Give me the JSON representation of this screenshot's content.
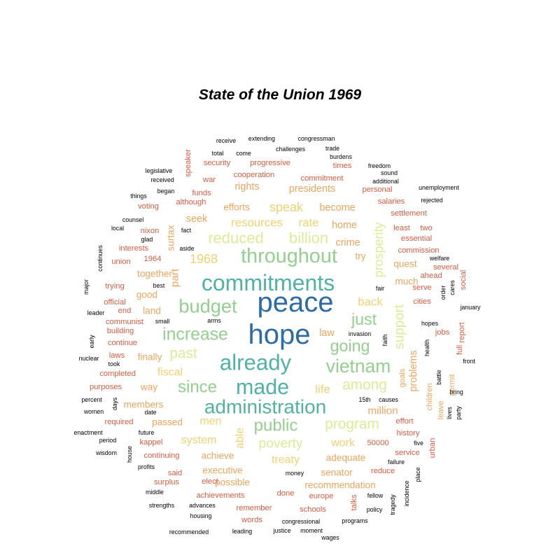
{
  "chart_data": {
    "type": "wordcloud",
    "title": "State of the Union 1969",
    "palette": [
      "#2b6ba7",
      "#4fb3a3",
      "#92d08e",
      "#dcec95",
      "#f5d070",
      "#f3a35b",
      "#e1593e"
    ],
    "words": [
      {
        "text": "peace",
        "size": 1.0,
        "tier": 0
      },
      {
        "text": "hope",
        "size": 1.0,
        "tier": 0
      },
      {
        "text": "commitments",
        "size": 0.8,
        "tier": 1
      },
      {
        "text": "already",
        "size": 0.78,
        "tier": 1
      },
      {
        "text": "made",
        "size": 0.76,
        "tier": 1
      },
      {
        "text": "administration",
        "size": 0.7,
        "tier": 1
      },
      {
        "text": "throughout",
        "size": 0.72,
        "tier": 2
      },
      {
        "text": "budget",
        "size": 0.68,
        "tier": 2
      },
      {
        "text": "vietnam",
        "size": 0.66,
        "tier": 2
      },
      {
        "text": "increase",
        "size": 0.62,
        "tier": 2
      },
      {
        "text": "since",
        "size": 0.6,
        "tier": 2
      },
      {
        "text": "going",
        "size": 0.58,
        "tier": 2
      },
      {
        "text": "just",
        "size": 0.58,
        "tier": 2
      },
      {
        "text": "public",
        "size": 0.6,
        "tier": 2
      },
      {
        "text": "reduced",
        "size": 0.55,
        "tier": 3
      },
      {
        "text": "billion",
        "size": 0.55,
        "tier": 3
      },
      {
        "text": "past",
        "size": 0.52,
        "tier": 3
      },
      {
        "text": "among",
        "size": 0.52,
        "tier": 3
      },
      {
        "text": "program",
        "size": 0.52,
        "tier": 3
      },
      {
        "text": "poverty",
        "size": 0.48,
        "tier": 3
      },
      {
        "text": "support",
        "size": 0.48,
        "tier": 3
      },
      {
        "text": "prosperity",
        "size": 0.45,
        "tier": 3
      },
      {
        "text": "speak",
        "size": 0.45,
        "tier": 4
      },
      {
        "text": "resources",
        "size": 0.42,
        "tier": 4
      },
      {
        "text": "rate",
        "size": 0.42,
        "tier": 4
      },
      {
        "text": "1968",
        "size": 0.45,
        "tier": 4
      },
      {
        "text": "back",
        "size": 0.42,
        "tier": 4
      },
      {
        "text": "life",
        "size": 0.42,
        "tier": 4
      },
      {
        "text": "fiscal",
        "size": 0.4,
        "tier": 4
      },
      {
        "text": "men",
        "size": 0.4,
        "tier": 4
      },
      {
        "text": "system",
        "size": 0.4,
        "tier": 4
      },
      {
        "text": "able",
        "size": 0.4,
        "tier": 4
      },
      {
        "text": "treaty",
        "size": 0.4,
        "tier": 4
      },
      {
        "text": "work",
        "size": 0.4,
        "tier": 4
      },
      {
        "text": "part",
        "size": 0.38,
        "tier": 5
      },
      {
        "text": "surtax",
        "size": 0.34,
        "tier": 5
      },
      {
        "text": "law",
        "size": 0.36,
        "tier": 5
      },
      {
        "text": "million",
        "size": 0.38,
        "tier": 5
      },
      {
        "text": "problems",
        "size": 0.36,
        "tier": 5
      },
      {
        "text": "home",
        "size": 0.36,
        "tier": 5
      },
      {
        "text": "crime",
        "size": 0.36,
        "tier": 5
      },
      {
        "text": "try",
        "size": 0.34,
        "tier": 5
      },
      {
        "text": "become",
        "size": 0.36,
        "tier": 5
      },
      {
        "text": "presidents",
        "size": 0.36,
        "tier": 5
      },
      {
        "text": "rights",
        "size": 0.36,
        "tier": 5
      },
      {
        "text": "seek",
        "size": 0.36,
        "tier": 5
      },
      {
        "text": "efforts",
        "size": 0.34,
        "tier": 5
      },
      {
        "text": "together",
        "size": 0.34,
        "tier": 5
      },
      {
        "text": "good",
        "size": 0.34,
        "tier": 5
      },
      {
        "text": "land",
        "size": 0.34,
        "tier": 5
      },
      {
        "text": "finally",
        "size": 0.34,
        "tier": 5
      },
      {
        "text": "way",
        "size": 0.34,
        "tier": 5
      },
      {
        "text": "members",
        "size": 0.34,
        "tier": 5
      },
      {
        "text": "passed",
        "size": 0.34,
        "tier": 5
      },
      {
        "text": "achieve",
        "size": 0.34,
        "tier": 5
      },
      {
        "text": "executive",
        "size": 0.34,
        "tier": 5
      },
      {
        "text": "possible",
        "size": 0.34,
        "tier": 5
      },
      {
        "text": "adequate",
        "size": 0.34,
        "tier": 5
      },
      {
        "text": "senator",
        "size": 0.34,
        "tier": 5
      },
      {
        "text": "recommendation",
        "size": 0.34,
        "tier": 5
      },
      {
        "text": "much",
        "size": 0.34,
        "tier": 5
      },
      {
        "text": "quest",
        "size": 0.34,
        "tier": 5
      },
      {
        "text": "goals",
        "size": 0.28,
        "tier": 5
      },
      {
        "text": "children",
        "size": 0.28,
        "tier": 5
      },
      {
        "text": "leave",
        "size": 0.28,
        "tier": 5
      },
      {
        "text": "permit",
        "size": 0.28,
        "tier": 5
      },
      {
        "text": "speaker",
        "size": 0.28,
        "tier": 6
      },
      {
        "text": "security",
        "size": 0.28,
        "tier": 6
      },
      {
        "text": "progressive",
        "size": 0.28,
        "tier": 6
      },
      {
        "text": "times",
        "size": 0.28,
        "tier": 6
      },
      {
        "text": "cooperation",
        "size": 0.28,
        "tier": 6
      },
      {
        "text": "war",
        "size": 0.28,
        "tier": 6
      },
      {
        "text": "commitment",
        "size": 0.28,
        "tier": 6
      },
      {
        "text": "funds",
        "size": 0.28,
        "tier": 6
      },
      {
        "text": "although",
        "size": 0.28,
        "tier": 6
      },
      {
        "text": "personal",
        "size": 0.28,
        "tier": 6
      },
      {
        "text": "salaries",
        "size": 0.28,
        "tier": 6
      },
      {
        "text": "settlement",
        "size": 0.28,
        "tier": 6
      },
      {
        "text": "least",
        "size": 0.28,
        "tier": 6
      },
      {
        "text": "two",
        "size": 0.28,
        "tier": 6
      },
      {
        "text": "essential",
        "size": 0.28,
        "tier": 6
      },
      {
        "text": "commission",
        "size": 0.28,
        "tier": 6
      },
      {
        "text": "ahead",
        "size": 0.28,
        "tier": 6
      },
      {
        "text": "several",
        "size": 0.28,
        "tier": 6
      },
      {
        "text": "serve",
        "size": 0.28,
        "tier": 6
      },
      {
        "text": "cities",
        "size": 0.28,
        "tier": 6
      },
      {
        "text": "jobs",
        "size": 0.28,
        "tier": 6
      },
      {
        "text": "voting",
        "size": 0.28,
        "tier": 6
      },
      {
        "text": "nixon",
        "size": 0.28,
        "tier": 6
      },
      {
        "text": "interests",
        "size": 0.28,
        "tier": 6
      },
      {
        "text": "1964",
        "size": 0.28,
        "tier": 6
      },
      {
        "text": "union",
        "size": 0.28,
        "tier": 6
      },
      {
        "text": "trying",
        "size": 0.28,
        "tier": 6
      },
      {
        "text": "official",
        "size": 0.28,
        "tier": 6
      },
      {
        "text": "end",
        "size": 0.28,
        "tier": 6
      },
      {
        "text": "communist",
        "size": 0.28,
        "tier": 6
      },
      {
        "text": "building",
        "size": 0.28,
        "tier": 6
      },
      {
        "text": "continue",
        "size": 0.28,
        "tier": 6
      },
      {
        "text": "laws",
        "size": 0.28,
        "tier": 6
      },
      {
        "text": "completed",
        "size": 0.28,
        "tier": 6
      },
      {
        "text": "purposes",
        "size": 0.28,
        "tier": 6
      },
      {
        "text": "required",
        "size": 0.28,
        "tier": 6
      },
      {
        "text": "kappel",
        "size": 0.28,
        "tier": 6
      },
      {
        "text": "continuing",
        "size": 0.28,
        "tier": 6
      },
      {
        "text": "said",
        "size": 0.28,
        "tier": 6
      },
      {
        "text": "surplus",
        "size": 0.28,
        "tier": 6
      },
      {
        "text": "elect",
        "size": 0.28,
        "tier": 6
      },
      {
        "text": "achievements",
        "size": 0.28,
        "tier": 6
      },
      {
        "text": "done",
        "size": 0.28,
        "tier": 6
      },
      {
        "text": "europe",
        "size": 0.28,
        "tier": 6
      },
      {
        "text": "remember",
        "size": 0.28,
        "tier": 6
      },
      {
        "text": "schools",
        "size": 0.28,
        "tier": 6
      },
      {
        "text": "words",
        "size": 0.28,
        "tier": 6
      },
      {
        "text": "history",
        "size": 0.28,
        "tier": 6
      },
      {
        "text": "service",
        "size": 0.28,
        "tier": 6
      },
      {
        "text": "reduce",
        "size": 0.28,
        "tier": 6
      },
      {
        "text": "50000",
        "size": 0.28,
        "tier": 6
      },
      {
        "text": "talks",
        "size": 0.28,
        "tier": 6
      },
      {
        "text": "report",
        "size": 0.28,
        "tier": 6
      },
      {
        "text": "social",
        "size": 0.28,
        "tier": 6
      },
      {
        "text": "urban",
        "size": 0.28,
        "tier": 6
      },
      {
        "text": "full",
        "size": 0.28,
        "tier": 6
      },
      {
        "text": "effort",
        "size": 0.28,
        "tier": 6
      },
      {
        "text": "receive",
        "size": 0.22,
        "tier": 7
      },
      {
        "text": "extending",
        "size": 0.22,
        "tier": 7
      },
      {
        "text": "congressman",
        "size": 0.22,
        "tier": 7
      },
      {
        "text": "challenges",
        "size": 0.22,
        "tier": 7
      },
      {
        "text": "trade",
        "size": 0.22,
        "tier": 7
      },
      {
        "text": "burdens",
        "size": 0.22,
        "tier": 7
      },
      {
        "text": "total",
        "size": 0.22,
        "tier": 7
      },
      {
        "text": "come",
        "size": 0.22,
        "tier": 7
      },
      {
        "text": "freedom",
        "size": 0.22,
        "tier": 7
      },
      {
        "text": "sound",
        "size": 0.22,
        "tier": 7
      },
      {
        "text": "additional",
        "size": 0.22,
        "tier": 7
      },
      {
        "text": "legislative",
        "size": 0.22,
        "tier": 7
      },
      {
        "text": "received",
        "size": 0.22,
        "tier": 7
      },
      {
        "text": "things",
        "size": 0.22,
        "tier": 7
      },
      {
        "text": "began",
        "size": 0.22,
        "tier": 7
      },
      {
        "text": "unemployment",
        "size": 0.22,
        "tier": 7
      },
      {
        "text": "rejected",
        "size": 0.22,
        "tier": 7
      },
      {
        "text": "counsel",
        "size": 0.22,
        "tier": 7
      },
      {
        "text": "local",
        "size": 0.22,
        "tier": 7
      },
      {
        "text": "fact",
        "size": 0.22,
        "tier": 7
      },
      {
        "text": "glad",
        "size": 0.22,
        "tier": 7
      },
      {
        "text": "aside",
        "size": 0.22,
        "tier": 7
      },
      {
        "text": "continues",
        "size": 0.22,
        "tier": 7
      },
      {
        "text": "welfare",
        "size": 0.22,
        "tier": 7
      },
      {
        "text": "major",
        "size": 0.22,
        "tier": 7
      },
      {
        "text": "best",
        "size": 0.22,
        "tier": 7
      },
      {
        "text": "fair",
        "size": 0.22,
        "tier": 7
      },
      {
        "text": "order",
        "size": 0.22,
        "tier": 7
      },
      {
        "text": "cares",
        "size": 0.22,
        "tier": 7
      },
      {
        "text": "leader",
        "size": 0.22,
        "tier": 7
      },
      {
        "text": "january",
        "size": 0.22,
        "tier": 7
      },
      {
        "text": "small",
        "size": 0.22,
        "tier": 7
      },
      {
        "text": "arms",
        "size": 0.22,
        "tier": 7
      },
      {
        "text": "hopes",
        "size": 0.22,
        "tier": 7
      },
      {
        "text": "early",
        "size": 0.22,
        "tier": 7
      },
      {
        "text": "invasion",
        "size": 0.22,
        "tier": 7
      },
      {
        "text": "faith",
        "size": 0.22,
        "tier": 7
      },
      {
        "text": "health",
        "size": 0.22,
        "tier": 7
      },
      {
        "text": "nuclear",
        "size": 0.22,
        "tier": 7
      },
      {
        "text": "took",
        "size": 0.22,
        "tier": 7
      },
      {
        "text": "front",
        "size": 0.22,
        "tier": 7
      },
      {
        "text": "battle",
        "size": 0.22,
        "tier": 7
      },
      {
        "text": "bring",
        "size": 0.22,
        "tier": 7
      },
      {
        "text": "percent",
        "size": 0.22,
        "tier": 7
      },
      {
        "text": "days",
        "size": 0.22,
        "tier": 7
      },
      {
        "text": "15th",
        "size": 0.22,
        "tier": 7
      },
      {
        "text": "causes",
        "size": 0.22,
        "tier": 7
      },
      {
        "text": "party",
        "size": 0.22,
        "tier": 7
      },
      {
        "text": "women",
        "size": 0.22,
        "tier": 7
      },
      {
        "text": "date",
        "size": 0.22,
        "tier": 7
      },
      {
        "text": "lives",
        "size": 0.22,
        "tier": 7
      },
      {
        "text": "enactment",
        "size": 0.22,
        "tier": 7
      },
      {
        "text": "future",
        "size": 0.22,
        "tier": 7
      },
      {
        "text": "period",
        "size": 0.22,
        "tier": 7
      },
      {
        "text": "five",
        "size": 0.22,
        "tier": 7
      },
      {
        "text": "wisdom",
        "size": 0.22,
        "tier": 7
      },
      {
        "text": "house",
        "size": 0.22,
        "tier": 7
      },
      {
        "text": "failure",
        "size": 0.22,
        "tier": 7
      },
      {
        "text": "place",
        "size": 0.22,
        "tier": 7
      },
      {
        "text": "profits",
        "size": 0.22,
        "tier": 7
      },
      {
        "text": "money",
        "size": 0.22,
        "tier": 7
      },
      {
        "text": "middle",
        "size": 0.22,
        "tier": 7
      },
      {
        "text": "incidence",
        "size": 0.22,
        "tier": 7
      },
      {
        "text": "fellow",
        "size": 0.22,
        "tier": 7
      },
      {
        "text": "strengths",
        "size": 0.22,
        "tier": 7
      },
      {
        "text": "advances",
        "size": 0.22,
        "tier": 7
      },
      {
        "text": "policy",
        "size": 0.22,
        "tier": 7
      },
      {
        "text": "tragedy",
        "size": 0.22,
        "tier": 7
      },
      {
        "text": "housing",
        "size": 0.22,
        "tier": 7
      },
      {
        "text": "congressional",
        "size": 0.22,
        "tier": 7
      },
      {
        "text": "programs",
        "size": 0.22,
        "tier": 7
      },
      {
        "text": "recommended",
        "size": 0.22,
        "tier": 7
      },
      {
        "text": "leading",
        "size": 0.22,
        "tier": 7
      },
      {
        "text": "justice",
        "size": 0.22,
        "tier": 7
      },
      {
        "text": "moment",
        "size": 0.22,
        "tier": 7
      },
      {
        "text": "wages",
        "size": 0.22,
        "tier": 7
      }
    ]
  }
}
